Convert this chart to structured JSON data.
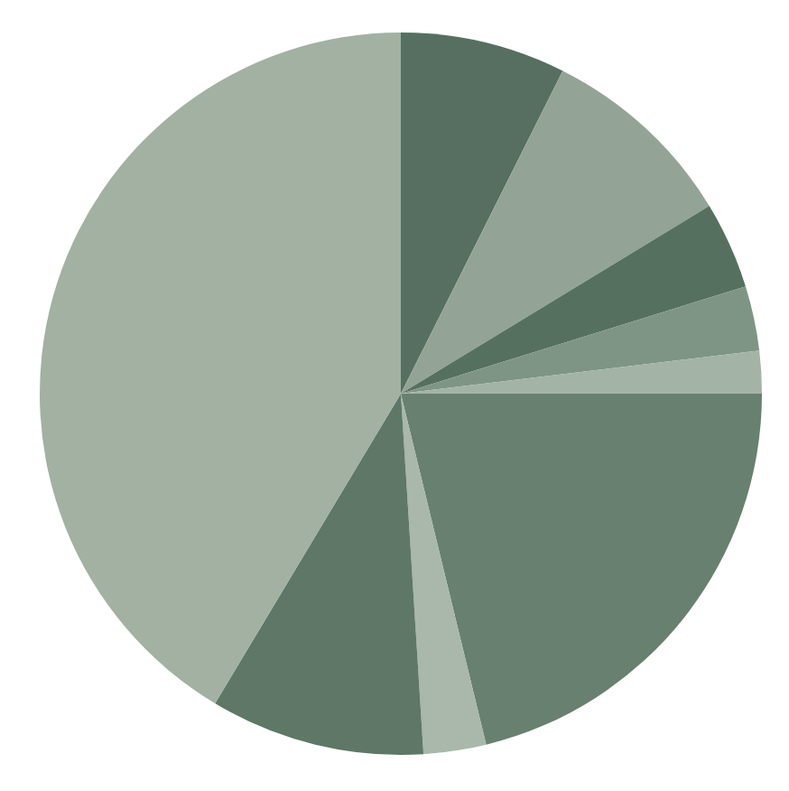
{
  "chart_data": {
    "type": "pie",
    "categories": [
      null,
      null,
      null,
      null,
      null,
      null,
      null,
      null,
      null
    ],
    "values": [
      7.4,
      8.9,
      3.9,
      2.9,
      1.9,
      21.2,
      2.8,
      9.6,
      41.4
    ],
    "colors": [
      "#566f60",
      "#93a496",
      "#56705f",
      "#7e9585",
      "#a3b3a5",
      "#68806f",
      "#a9b8aa",
      "#5e7767",
      "#a2b1a2"
    ]
  }
}
